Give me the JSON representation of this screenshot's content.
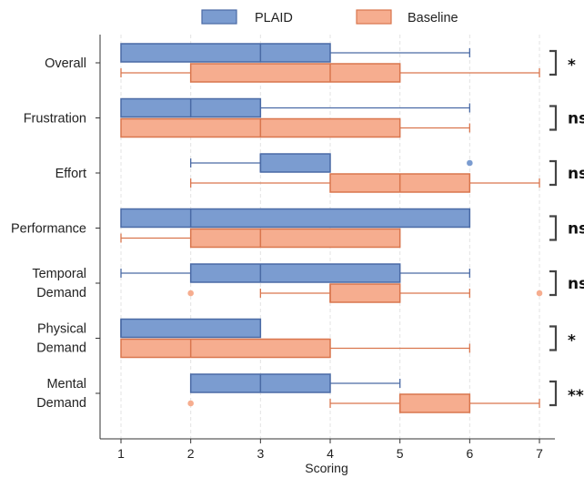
{
  "chart_data": {
    "type": "boxplot",
    "orientation": "horizontal",
    "xlabel": "Scoring",
    "xlim": [
      0.7,
      7.3
    ],
    "xticks": [
      1,
      2,
      3,
      4,
      5,
      6,
      7
    ],
    "grid": "vertical dashed",
    "legend": {
      "position": "top-center",
      "entries": [
        "PLAID",
        "Baseline"
      ]
    },
    "colors": {
      "PLAID": {
        "fill": "#7b9cd0",
        "stroke": "#4a6aa5"
      },
      "Baseline": {
        "fill": "#f6ad8f",
        "stroke": "#d9764e"
      }
    },
    "categories": [
      "Overall",
      "Frustration",
      "Effort",
      "Performance",
      "Temporal Demand",
      "Physical Demand",
      "Mental Demand"
    ],
    "series": [
      {
        "name": "PLAID",
        "boxes": [
          {
            "category": "Overall",
            "whislo": 1,
            "q1": 1,
            "med": 3,
            "q3": 4,
            "whishi": 6,
            "fliers": []
          },
          {
            "category": "Frustration",
            "whislo": 1,
            "q1": 1,
            "med": 2,
            "q3": 3,
            "whishi": 6,
            "fliers": []
          },
          {
            "category": "Effort",
            "whislo": 2,
            "q1": 3,
            "med": 3,
            "q3": 4,
            "whishi": 4,
            "fliers": [
              6
            ]
          },
          {
            "category": "Performance",
            "whislo": 1,
            "q1": 1,
            "med": 2,
            "q3": 6,
            "whishi": 6,
            "fliers": []
          },
          {
            "category": "Temporal Demand",
            "whislo": 1,
            "q1": 2,
            "med": 3,
            "q3": 5,
            "whishi": 6,
            "fliers": []
          },
          {
            "category": "Physical Demand",
            "whislo": 1,
            "q1": 1,
            "med": 1,
            "q3": 3,
            "whishi": 3,
            "fliers": []
          },
          {
            "category": "Mental Demand",
            "whislo": 2,
            "q1": 2,
            "med": 3,
            "q3": 4,
            "whishi": 5,
            "fliers": []
          }
        ]
      },
      {
        "name": "Baseline",
        "boxes": [
          {
            "category": "Overall",
            "whislo": 1,
            "q1": 2,
            "med": 4,
            "q3": 5,
            "whishi": 7,
            "fliers": []
          },
          {
            "category": "Frustration",
            "whislo": 1,
            "q1": 1,
            "med": 3,
            "q3": 5,
            "whishi": 6,
            "fliers": []
          },
          {
            "category": "Effort",
            "whislo": 2,
            "q1": 4,
            "med": 5,
            "q3": 6,
            "whishi": 7,
            "fliers": []
          },
          {
            "category": "Performance",
            "whislo": 1,
            "q1": 2,
            "med": 3,
            "q3": 5,
            "whishi": 5,
            "fliers": []
          },
          {
            "category": "Temporal Demand",
            "whislo": 3,
            "q1": 4,
            "med": 4,
            "q3": 5,
            "whishi": 6,
            "fliers": [
              2,
              7
            ]
          },
          {
            "category": "Physical Demand",
            "whislo": 1,
            "q1": 1,
            "med": 2,
            "q3": 4,
            "whishi": 6,
            "fliers": []
          },
          {
            "category": "Mental Demand",
            "whislo": 4,
            "q1": 5,
            "med": 5,
            "q3": 6,
            "whishi": 7,
            "fliers": [
              2
            ]
          }
        ]
      }
    ],
    "significance": [
      "*",
      "ns",
      "ns",
      "ns",
      "ns",
      "*",
      "**"
    ]
  }
}
